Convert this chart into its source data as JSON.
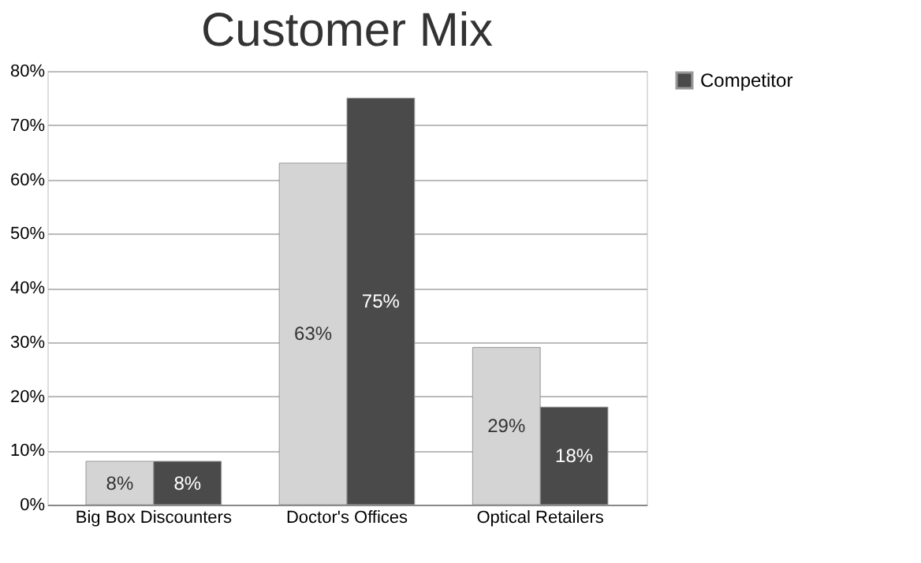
{
  "chart_data": {
    "type": "bar",
    "title": "Customer Mix",
    "categories": [
      "Big Box Discounters",
      "Doctor's Offices",
      "Optical Retailers"
    ],
    "series": [
      {
        "color": "#d4d4d4",
        "values": [
          8,
          63,
          29
        ],
        "value_labels": [
          "8%",
          "63%",
          "29%"
        ]
      },
      {
        "name": "Competitor",
        "color": "#4a4a4a",
        "values": [
          8,
          75,
          18
        ],
        "value_labels": [
          "8%",
          "75%",
          "18%"
        ]
      }
    ],
    "ylim": [
      0,
      80
    ],
    "yticks": [
      {
        "value": 0,
        "label": "0%"
      },
      {
        "value": 10,
        "label": "10%"
      },
      {
        "value": 20,
        "label": "20%"
      },
      {
        "value": 30,
        "label": "30%"
      },
      {
        "value": 40,
        "label": "40%"
      },
      {
        "value": 50,
        "label": "50%"
      },
      {
        "value": 60,
        "label": "60%"
      },
      {
        "value": 70,
        "label": "70%"
      },
      {
        "value": 80,
        "label": "80%"
      }
    ],
    "grid": "y",
    "legend": "right"
  }
}
